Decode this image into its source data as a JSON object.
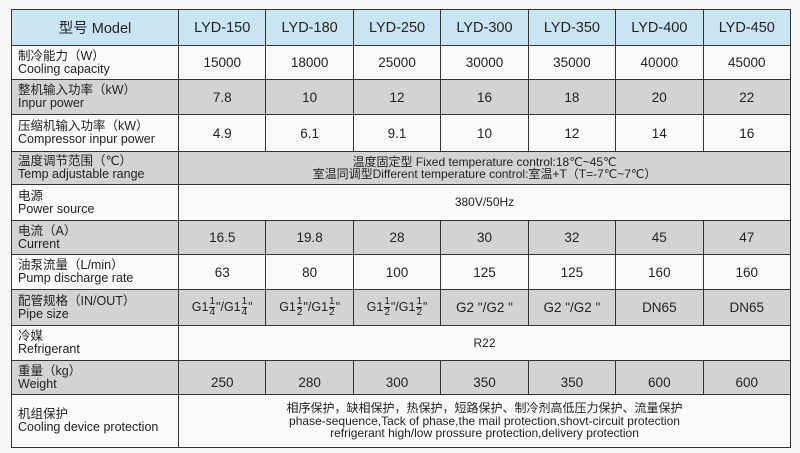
{
  "header": {
    "label": "型号 Model",
    "models": [
      "LYD-150",
      "LYD-180",
      "LYD-250",
      "LYD-300",
      "LYD-350",
      "LYD-400",
      "LYD-450"
    ]
  },
  "rows": [
    {
      "cn": "制冷能力（W）",
      "en": "Cooling capacity",
      "values": [
        "15000",
        "18000",
        "25000",
        "30000",
        "35000",
        "40000",
        "45000"
      ]
    },
    {
      "cn": "整机输入功率（kW）",
      "en": "Inpur power",
      "values": [
        "7.8",
        "10",
        "12",
        "16",
        "18",
        "20",
        "22"
      ]
    },
    {
      "cn": "压缩机输入功率（kW）",
      "en": "Compressor inpur power",
      "values": [
        "4.9",
        "6.1",
        "9.1",
        "10",
        "12",
        "14",
        "16"
      ]
    },
    {
      "cn": "温度调节范围（℃）",
      "en": "Temp adjustable range",
      "span": [
        "温度固定型 Fixed temperature control:18℃~45℃",
        "室温同调型Different temperature control:室温+T（T=-7℃~7℃）"
      ]
    },
    {
      "cn": "电源",
      "en": "Power source",
      "span": [
        "380V/50Hz"
      ]
    },
    {
      "cn": "电流（A）",
      "en": "Current",
      "values": [
        "16.5",
        "19.8",
        "28",
        "30",
        "32",
        "45",
        "47"
      ]
    },
    {
      "cn": "油泵流量（L/min）",
      "en": "Pump discharge rate",
      "values": [
        "63",
        "80",
        "100",
        "125",
        "125",
        "160",
        "160"
      ]
    },
    {
      "cn": "配管规格（IN/OUT）",
      "en": "Pipe size",
      "pipes": [
        {
          "w": "G1",
          "n": "1",
          "d": "4",
          "w2": "\"/G1",
          "n2": "1",
          "d2": "4",
          "t": "\""
        },
        {
          "w": "G1",
          "n": "1",
          "d": "2",
          "w2": "\"/G1",
          "n2": "1",
          "d2": "2",
          "t": "\""
        },
        {
          "w": "G1",
          "n": "1",
          "d": "2",
          "w2": "\"/G1",
          "n2": "1",
          "d2": "2",
          "t": "\""
        },
        {
          "text": "G2 \"/G2 \""
        },
        {
          "text": "G2 \"/G2 \""
        },
        {
          "text": "DN65"
        },
        {
          "text": "DN65"
        }
      ]
    },
    {
      "cn": "冷媒",
      "en": "Refrigerant",
      "span": [
        "R22"
      ]
    },
    {
      "cn": "重量（kg）",
      "en": "Weight",
      "values": [
        "250",
        "280",
        "300",
        "350",
        "350",
        "600",
        "600"
      ]
    },
    {
      "cn": "机组保护",
      "en": "Cooling device protection",
      "span": [
        "相序保护，缺相保护，热保护，短路保护、制冷剂高低压力保护、流量保护",
        "phase-sequence,Tack of phase,the mail protection,shovt-circuit protection",
        "refrigerant high/low prossure protection,delivery protection"
      ]
    }
  ],
  "colors": {
    "header_bg": "#c9e5f4",
    "shaded_row": "#d3d3d3"
  }
}
